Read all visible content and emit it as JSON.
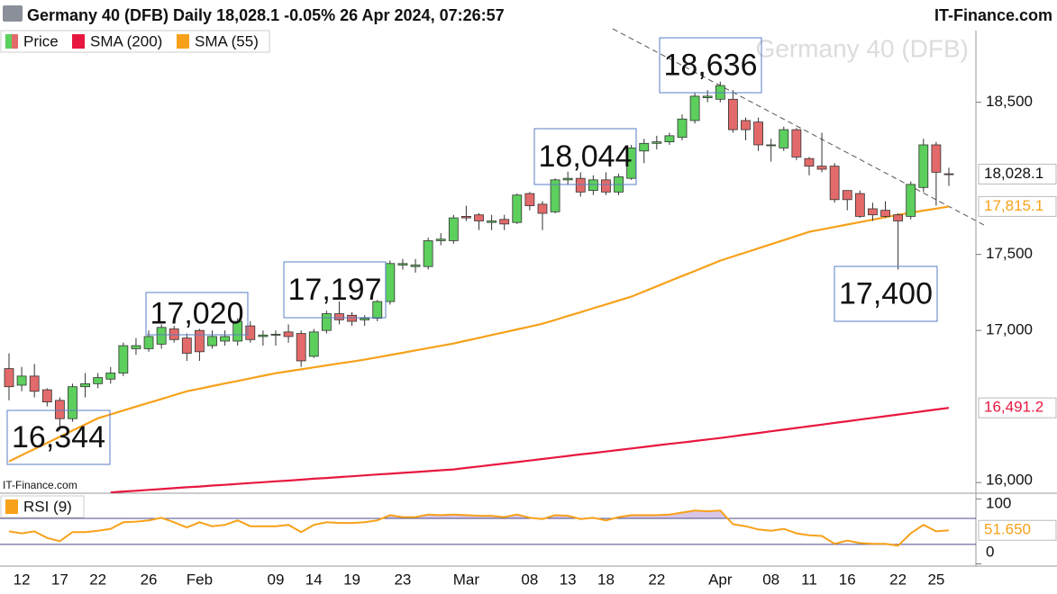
{
  "chart_data": [
    {
      "type": "candlestick",
      "title": "Germany 40 (DFB) Daily 18,028.1 -0.05% 26 Apr 2024, 07:26:57",
      "brand": "IT-Finance.com",
      "watermark": "Germany 40 (DFB)",
      "source": "IT-Finance.com",
      "categories": [
        null,
        "12",
        null,
        null,
        "17",
        null,
        null,
        "22",
        null,
        null,
        null,
        "26",
        null,
        null,
        null,
        "Feb",
        null,
        null,
        null,
        null,
        null,
        "09",
        null,
        null,
        "14",
        null,
        null,
        "19",
        null,
        null,
        null,
        "23",
        null,
        null,
        null,
        null,
        "Mar",
        null,
        null,
        null,
        null,
        "08",
        null,
        null,
        "13",
        null,
        null,
        "18",
        null,
        null,
        null,
        "22",
        null,
        null,
        null,
        null,
        "Apr",
        null,
        null,
        null,
        "08",
        null,
        null,
        "11",
        null,
        null,
        "16",
        null,
        null,
        null,
        "22",
        null,
        null,
        "25",
        null
      ],
      "price": {
        "name": "Price",
        "up_color": "#5ccf5c",
        "down_color": "#e36a6a",
        "open": [
          16749,
          16640,
          16700,
          16610,
          16540,
          16420,
          16630,
          16650,
          16680,
          16720,
          16880,
          16880,
          16910,
          17010,
          16950,
          17000,
          16900,
          16930,
          16930,
          17030,
          16960,
          16970,
          16990,
          16980,
          16830,
          17000,
          17110,
          17100,
          17070,
          17080,
          17190,
          17430,
          17420,
          17420,
          17590,
          17590,
          17750,
          17760,
          17710,
          17730,
          17710,
          17900,
          17830,
          17780,
          17990,
          18000,
          17920,
          17990,
          17910,
          18000,
          18180,
          18230,
          18240,
          18270,
          18380,
          18530,
          18520,
          18520,
          18380,
          18370,
          18220,
          18200,
          18320,
          18130,
          18080,
          18080,
          17920,
          17900,
          17800,
          17790,
          17760,
          17750,
          17940,
          18220,
          18030
        ],
        "high": [
          16849,
          16760,
          16780,
          16620,
          16560,
          16650,
          16720,
          16720,
          16760,
          16920,
          16950,
          17000,
          17040,
          17030,
          16980,
          17010,
          17000,
          17000,
          17080,
          17060,
          17000,
          17000,
          17040,
          17000,
          17010,
          17130,
          17190,
          17120,
          17100,
          17200,
          17460,
          17470,
          17470,
          17610,
          17640,
          17760,
          17820,
          17770,
          17760,
          17760,
          17900,
          17910,
          17850,
          18000,
          18044,
          18040,
          18020,
          18040,
          18030,
          18220,
          18260,
          18280,
          18300,
          18420,
          18560,
          18580,
          18636,
          18580,
          18400,
          18400,
          18260,
          18340,
          18330,
          18140,
          18300,
          18100,
          17920,
          17920,
          17840,
          17850,
          17770,
          17980,
          18260,
          18240,
          18070
        ],
        "low": [
          16541,
          16600,
          16560,
          16500,
          16344,
          16400,
          16560,
          16620,
          16650,
          16700,
          16840,
          16860,
          16880,
          16920,
          16800,
          16800,
          16880,
          16900,
          16900,
          16920,
          16900,
          16900,
          16920,
          16760,
          16820,
          16980,
          17040,
          17030,
          17030,
          17060,
          17170,
          17400,
          17380,
          17400,
          17560,
          17570,
          17720,
          17660,
          17660,
          17660,
          17700,
          17790,
          17660,
          17770,
          17960,
          17880,
          17890,
          17890,
          17890,
          17990,
          18100,
          18190,
          18220,
          18250,
          18360,
          18500,
          18500,
          18300,
          18250,
          18180,
          18110,
          18180,
          18120,
          18020,
          18040,
          17840,
          17790,
          17740,
          17720,
          17740,
          17400,
          17730,
          17910,
          17820,
          17950
        ],
        "close": [
          16630,
          16700,
          16600,
          16530,
          16420,
          16630,
          16650,
          16690,
          16720,
          16900,
          16900,
          16960,
          17020,
          16940,
          16850,
          16860,
          16960,
          16960,
          17060,
          16940,
          16970,
          16975,
          16960,
          16800,
          16990,
          17110,
          17070,
          17060,
          17080,
          17190,
          17440,
          17440,
          17430,
          17590,
          17600,
          17740,
          17740,
          17720,
          17720,
          17700,
          17890,
          17820,
          17770,
          17990,
          18000,
          17910,
          17990,
          17910,
          18010,
          18200,
          18230,
          18240,
          18280,
          18390,
          18540,
          18540,
          18610,
          18320,
          18320,
          18220,
          18220,
          18320,
          18140,
          18080,
          18060,
          17860,
          17860,
          17750,
          17760,
          17750,
          17720,
          17960,
          18220,
          18040,
          18028.1
        ],
        "last_label": "18,028.1"
      },
      "series": [
        {
          "name": "SMA (200)",
          "color": "#e8173f",
          "last_label": "16,491.2",
          "values": [
            null,
            null,
            null,
            null,
            null,
            null,
            null,
            null,
            15935,
            15941,
            15946,
            15952,
            15957,
            15963,
            15969,
            15974,
            15980,
            15985,
            15991,
            15997,
            16002,
            16008,
            16013,
            16019,
            16025,
            16030,
            16036,
            16041,
            16047,
            16053,
            16058,
            16064,
            16069,
            16075,
            16081,
            16086,
            16096,
            16106,
            16116,
            16125,
            16135,
            16145,
            16155,
            16165,
            16175,
            16185,
            16194,
            16204,
            16214,
            16224,
            16234,
            16244,
            16254,
            16263,
            16273,
            16283,
            16293,
            16304,
            16315,
            16326,
            16337,
            16348,
            16359,
            16370,
            16381,
            16392,
            16403,
            16414,
            16425,
            16436,
            16447,
            16458,
            16469,
            16480,
            16491.2
          ]
        },
        {
          "name": "SMA (55)",
          "color": "#f7a11a",
          "last_label": "17,815.1",
          "values": [
            16139,
            16180,
            16220,
            16261,
            16301,
            16342,
            16382,
            16423,
            16448,
            16474,
            16499,
            16524,
            16549,
            16575,
            16600,
            16617,
            16634,
            16651,
            16668,
            16685,
            16702,
            16719,
            16732,
            16744,
            16757,
            16770,
            16783,
            16795,
            16808,
            16823,
            16838,
            16853,
            16869,
            16884,
            16899,
            16914,
            16933,
            16951,
            16970,
            16988,
            17007,
            17025,
            17044,
            17069,
            17095,
            17120,
            17146,
            17171,
            17197,
            17222,
            17256,
            17290,
            17324,
            17358,
            17391,
            17425,
            17459,
            17486,
            17513,
            17540,
            17567,
            17594,
            17621,
            17648,
            17664,
            17680,
            17696,
            17712,
            17728,
            17744,
            17760,
            17774,
            17788,
            17801,
            17815.1
          ]
        }
      ],
      "annotations": [
        "18,636",
        "18,044",
        "17,197",
        "17,020",
        "16,344",
        "17,400"
      ],
      "ylim": [
        15930,
        18995
      ],
      "yticks": [
        {
          "value": 16000,
          "label": "16,000"
        },
        {
          "value": 17000,
          "label": "17,000"
        },
        {
          "value": 17500,
          "label": "17,500"
        },
        {
          "value": 18500,
          "label": "18,500"
        }
      ]
    },
    {
      "type": "line",
      "series": [
        {
          "name": "RSI (9)",
          "color": "#f7a11a",
          "last_label": "51.650",
          "values": [
            50,
            47,
            50,
            40,
            35,
            49,
            49,
            51,
            54,
            64,
            65,
            67,
            71,
            64,
            56,
            64,
            58,
            60,
            67,
            58,
            58,
            58,
            60,
            49,
            60,
            64,
            63,
            63,
            64,
            67,
            75,
            72,
            72,
            76,
            75,
            76,
            75,
            74,
            74,
            72,
            76,
            71,
            69,
            75,
            74,
            69,
            71,
            67,
            72,
            75,
            75,
            75,
            76,
            79,
            82,
            81,
            82,
            61,
            58,
            53,
            51,
            54,
            47,
            44,
            43,
            31,
            36,
            32,
            31,
            31,
            28,
            47,
            60,
            50,
            51.65
          ]
        }
      ],
      "levels": [
        70,
        30
      ],
      "fill_color": "#d8c6e6",
      "ylim": [
        -2,
        106
      ],
      "yticks": [
        0,
        100
      ]
    }
  ]
}
